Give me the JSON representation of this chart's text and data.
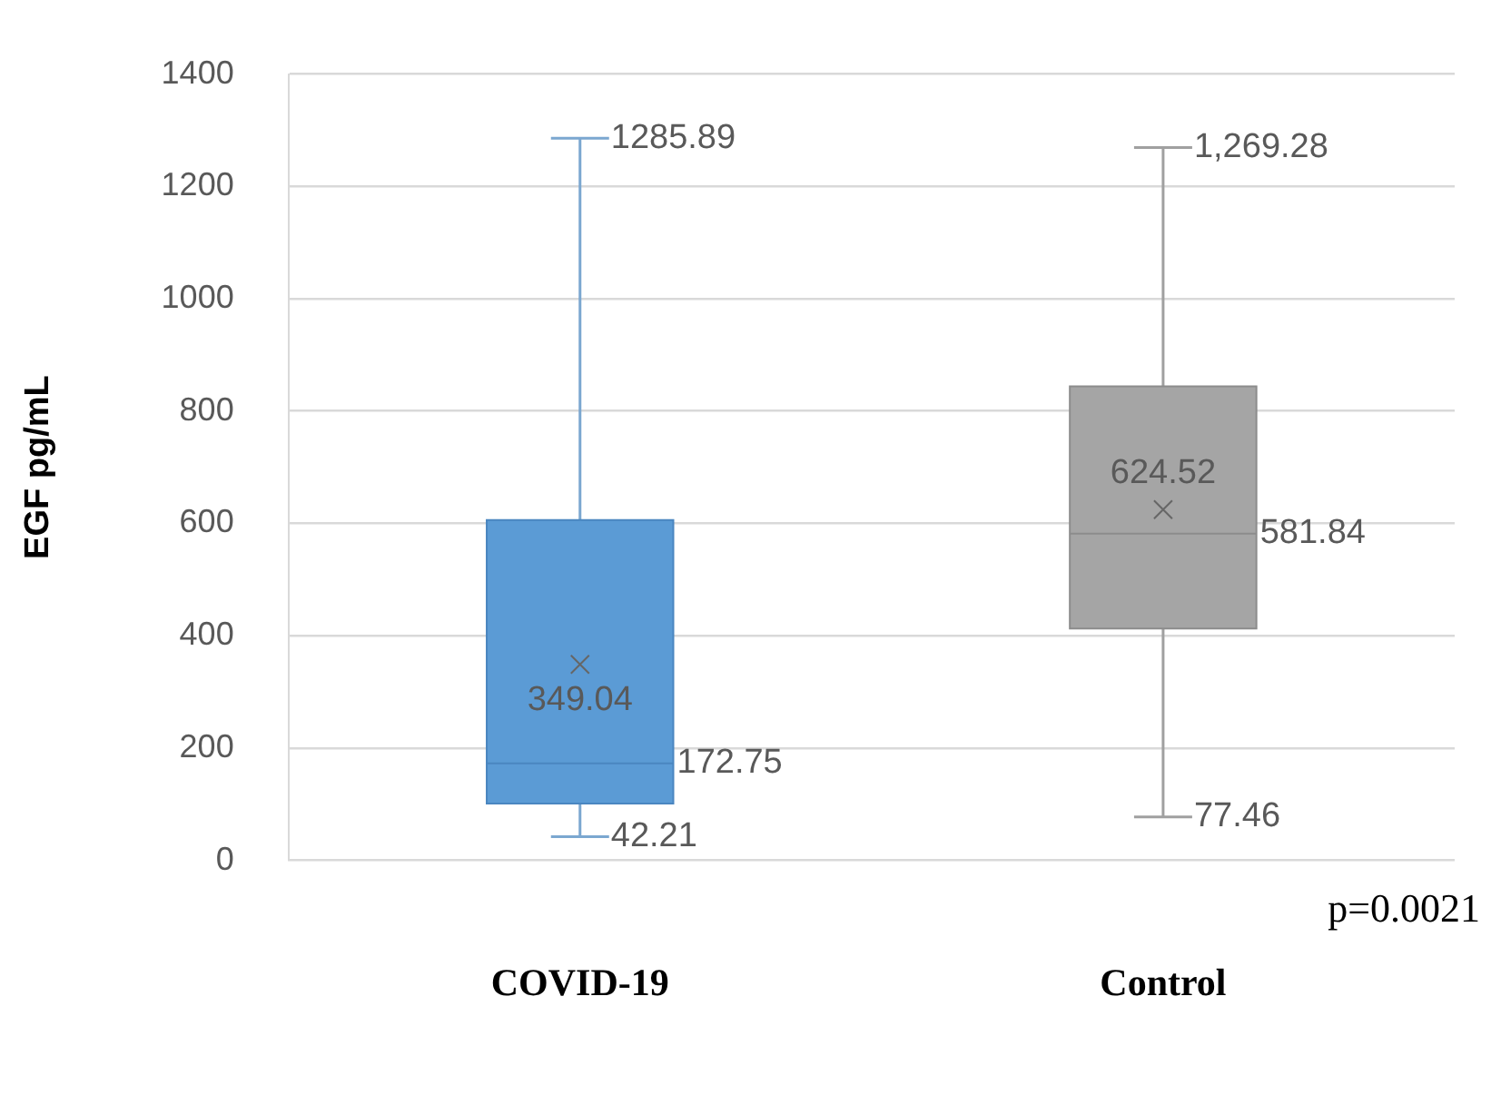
{
  "chart_data": {
    "type": "box",
    "ylabel": "EGF pg/mL",
    "categories": [
      "COVID-19",
      "Control"
    ],
    "boxes": [
      {
        "low": 42.21,
        "q1": 101,
        "median": 172.75,
        "q3": 606,
        "high": 1285.89,
        "mean": 349.04
      },
      {
        "low": 77.46,
        "q1": 413,
        "median": 581.84,
        "q3": 844,
        "high": 1269.28,
        "mean": 624.52
      }
    ],
    "colors": [
      "#5b9bd5",
      "#a5a5a5"
    ],
    "ylim": [
      0,
      1400
    ],
    "yticks": [
      0,
      200,
      400,
      600,
      800,
      1000,
      1200,
      1400
    ],
    "grid": "y",
    "annotations": [
      {
        "text": "1285.89",
        "x": "COVID-19",
        "y": 1285.89
      },
      {
        "text": "172.75",
        "x": "COVID-19",
        "y": 172.75
      },
      {
        "text": "42.21",
        "x": "COVID-19",
        "y": 42.21
      },
      "349.04",
      {
        "text": "1,269.28",
        "x": "Control",
        "y": 1269.28
      },
      {
        "text": "581.84",
        "x": "Control",
        "y": 581.84
      },
      {
        "text": "77.46",
        "x": "Control",
        "y": 77.46
      },
      "624.52",
      "p=0.0021"
    ]
  }
}
